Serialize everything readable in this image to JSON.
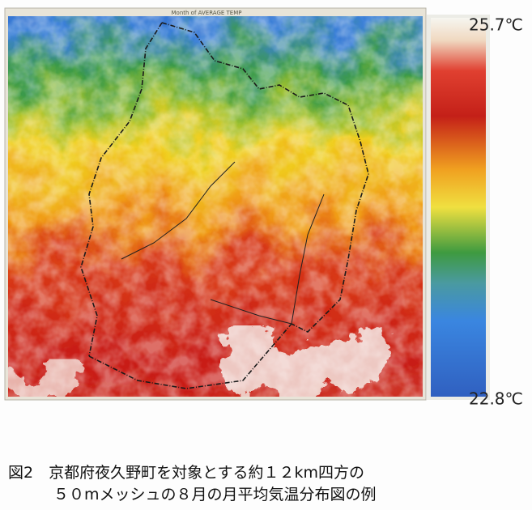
{
  "map": {
    "title": "Month of AVERAGE TEMP"
  },
  "colorbar": {
    "max_label": "25.7℃",
    "min_label": "22.8℃"
  },
  "caption": {
    "line1": "図2　京都府夜久野町を対象とする約１２km四方の",
    "line2": "５０mメッシュの８月の月平均気温分布図の例"
  }
}
